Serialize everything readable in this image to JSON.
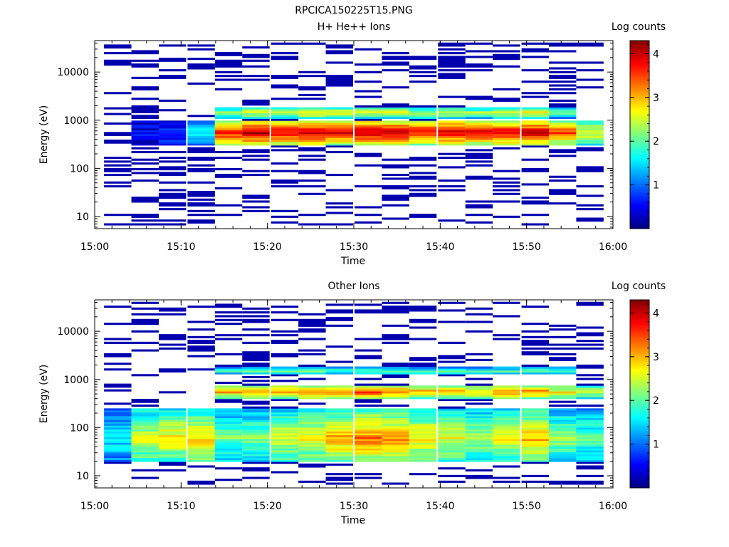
{
  "figure_title": "RPCICA150225T15.PNG",
  "chart_data": [
    {
      "type": "heatmap",
      "title": "H+ He++ Ions",
      "xlabel": "Time",
      "ylabel": "Energy (eV)",
      "colorbar_label": "Log counts",
      "colorbar_ticks": [
        "1",
        "2",
        "3",
        "4"
      ],
      "colorbar_range": [
        0,
        4.3
      ],
      "colormap": "jet",
      "x_ticks": [
        "15:00",
        "15:10",
        "15:20",
        "15:30",
        "15:40",
        "15:50",
        "16:00"
      ],
      "y_ticks": [
        "10",
        "100",
        "1000",
        "10000"
      ],
      "y_scale": "log",
      "ylim": [
        5.6,
        45000
      ],
      "xlim": [
        "15:00",
        "16:00"
      ],
      "time_bins": [
        "15:02:40",
        "15:05:50",
        "15:09:00",
        "15:12:20",
        "15:15:30",
        "15:18:40",
        "15:22:00",
        "15:25:10",
        "15:28:20",
        "15:31:40",
        "15:34:50",
        "15:38:00",
        "15:41:20",
        "15:44:30",
        "15:47:40",
        "15:51:00",
        "15:54:10",
        "15:57:20"
      ],
      "bands": [
        {
          "e_min": 300,
          "e_max": 1000,
          "peak_energy": 560,
          "peak_log_counts": [
            0,
            0.5,
            0.8,
            1.6,
            3.8,
            4.2,
            4.0,
            4.1,
            3.9,
            4.2,
            4.1,
            3.8,
            4.0,
            3.9,
            4.0,
            4.1,
            3.5,
            2.8
          ]
        },
        {
          "e_min": 1100,
          "e_max": 1800,
          "peak_energy": 1450,
          "peak_log_counts": [
            0,
            0,
            0,
            0,
            2.2,
            2.6,
            2.7,
            3.0,
            2.8,
            2.6,
            2.6,
            2.4,
            2.6,
            2.3,
            2.6,
            2.9,
            2.0,
            0
          ]
        }
      ],
      "background_log_counts": 0.2
    },
    {
      "type": "heatmap",
      "title": "Other Ions",
      "xlabel": "Time",
      "ylabel": "Energy (eV)",
      "colorbar_label": "Log counts",
      "colorbar_ticks": [
        "1",
        "2",
        "3",
        "4"
      ],
      "colorbar_range": [
        0,
        4.3
      ],
      "colormap": "jet",
      "x_ticks": [
        "15:00",
        "15:10",
        "15:20",
        "15:30",
        "15:40",
        "15:50",
        "16:00"
      ],
      "y_ticks": [
        "10",
        "100",
        "1000",
        "10000"
      ],
      "y_scale": "log",
      "ylim": [
        5.6,
        45000
      ],
      "xlim": [
        "15:00",
        "16:00"
      ],
      "time_bins": [
        "15:02:40",
        "15:05:50",
        "15:09:00",
        "15:12:20",
        "15:15:30",
        "15:18:40",
        "15:22:00",
        "15:25:10",
        "15:28:20",
        "15:31:40",
        "15:34:50",
        "15:38:00",
        "15:41:20",
        "15:44:30",
        "15:47:40",
        "15:51:00",
        "15:54:10",
        "15:57:20"
      ],
      "bands": [
        {
          "e_min": 20,
          "e_max": 250,
          "peak_energy": 60,
          "peak_log_counts": [
            1.6,
            2.6,
            2.8,
            2.9,
            2.1,
            2.2,
            2.6,
            2.7,
            3.1,
            3.3,
            3.2,
            2.8,
            2.6,
            2.4,
            2.6,
            3.0,
            2.3,
            2.0
          ]
        },
        {
          "e_min": 380,
          "e_max": 750,
          "peak_energy": 560,
          "peak_log_counts": [
            0,
            0,
            0,
            0,
            3.1,
            3.0,
            3.2,
            3.4,
            3.3,
            3.5,
            3.4,
            3.1,
            3.1,
            2.9,
            3.2,
            3.3,
            2.8,
            2.4
          ]
        },
        {
          "e_min": 1300,
          "e_max": 1800,
          "peak_energy": 1500,
          "peak_log_counts": [
            0,
            0,
            0,
            0,
            1.9,
            2.0,
            2.0,
            2.2,
            1.9,
            2.0,
            2.1,
            1.9,
            2.0,
            1.8,
            1.9,
            2.0,
            1.9,
            0
          ]
        }
      ],
      "background_log_counts": 0.2
    }
  ]
}
